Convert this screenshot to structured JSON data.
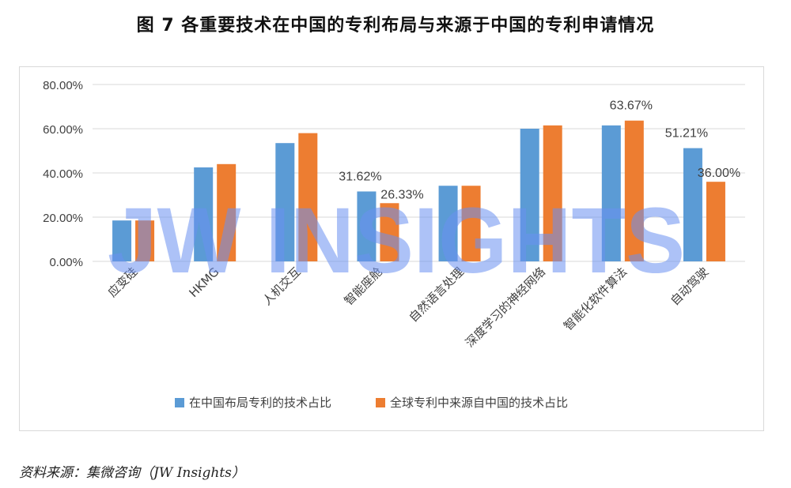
{
  "title": "图 7 各重要技术在中国的专利布局与来源于中国的专利申请情况",
  "source": "资料来源：集微咨询（JW Insights）",
  "watermark": "JW INSIGHTS",
  "colors": {
    "series1": "#5b9bd5",
    "series2": "#ed7d31",
    "watermark": "#6a8ff0",
    "grid": "#d9d9d9",
    "axis_text": "#404040"
  },
  "chart_data": {
    "type": "bar",
    "categories": [
      "应变硅",
      "HKMG",
      "人机交互",
      "智能座舱",
      "自然语言处理",
      "深度学习的神经网络",
      "智能化软件算法",
      "自动驾驶"
    ],
    "series": [
      {
        "name": "在中国布局专利的技术占比",
        "values": [
          18.5,
          42.5,
          53.5,
          31.62,
          34.2,
          60.0,
          61.5,
          51.21
        ],
        "data_labels": [
          "",
          "",
          "",
          "31.62%",
          "",
          "",
          "",
          "51.21%"
        ]
      },
      {
        "name": "全球专利中来源自中国的技术占比",
        "values": [
          18.5,
          44.0,
          58.0,
          26.33,
          34.2,
          61.5,
          63.67,
          36.0
        ],
        "data_labels": [
          "",
          "",
          "",
          "26.33%",
          "",
          "",
          "63.67%",
          "36.00%"
        ]
      }
    ],
    "y_ticks": [
      "0.00%",
      "20.00%",
      "40.00%",
      "60.00%",
      "80.00%"
    ],
    "ylim": [
      0,
      80
    ],
    "grid": true,
    "legend_position": "bottom"
  }
}
